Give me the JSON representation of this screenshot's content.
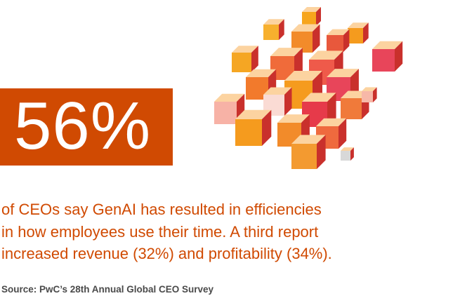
{
  "stat": {
    "value": "56%"
  },
  "description": "of CEOs say GenAI has resulted in efficiencies in how employees use their time. A third report increased revenue (32%) and profitability (34%).",
  "description_lines": [
    "of CEOs say GenAI has resulted in efficiencies",
    "in how employees use their time. A third report",
    "increased revenue (32%) and profitability (34%)."
  ],
  "source": "Source: PwC’s 28th Annual Global CEO Survey",
  "colors": {
    "accent": "#d04a02",
    "source_text": "#4a4a4a"
  },
  "illustration": {
    "icon": "cube-cluster-icon"
  }
}
